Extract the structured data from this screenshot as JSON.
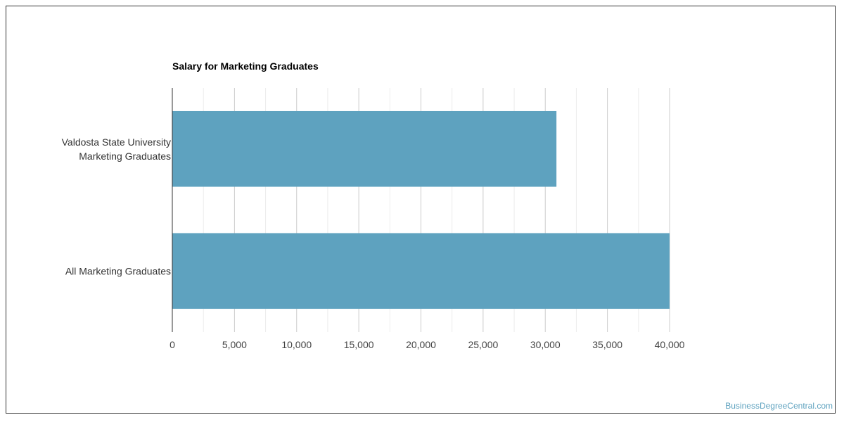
{
  "chart_data": {
    "type": "bar",
    "orientation": "horizontal",
    "title": "Salary for Marketing Graduates",
    "xlabel": "",
    "ylabel": "",
    "categories": [
      [
        "Valdosta State University",
        "Marketing Graduates"
      ],
      [
        "All Marketing Graduates"
      ]
    ],
    "values": [
      30900,
      40000
    ],
    "xlim": [
      0,
      40000
    ],
    "ticks": [
      0,
      5000,
      10000,
      15000,
      20000,
      25000,
      30000,
      35000,
      40000
    ],
    "tick_labels": [
      "0",
      "5,000",
      "10,000",
      "15,000",
      "20,000",
      "25,000",
      "30,000",
      "35,000",
      "40,000"
    ],
    "grid": true,
    "legend": "none",
    "bar_color": "#5ea2bf",
    "grid_color": "#cccccc"
  },
  "watermark": "BusinessDegreeCentral.com"
}
